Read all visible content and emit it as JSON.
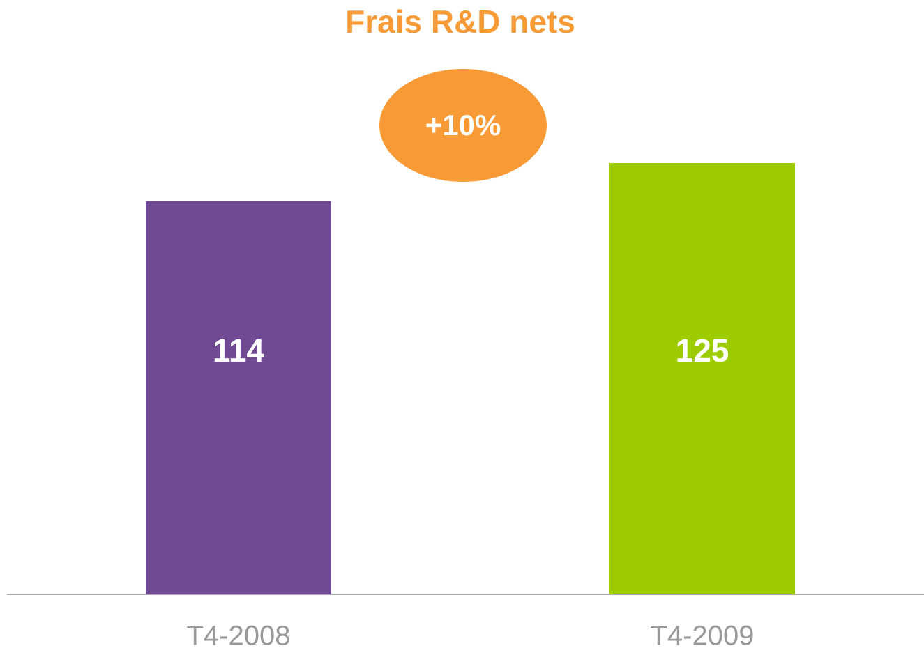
{
  "chart_data": {
    "type": "bar",
    "title": "Frais R&D nets",
    "categories": [
      "T4-2008",
      "T4-2009"
    ],
    "values": [
      114,
      125
    ],
    "colors": [
      "#714a94",
      "#9ccc00"
    ],
    "annotation": "+10%",
    "annotation_color": "#f89b37",
    "ylim": [
      0,
      145
    ]
  }
}
